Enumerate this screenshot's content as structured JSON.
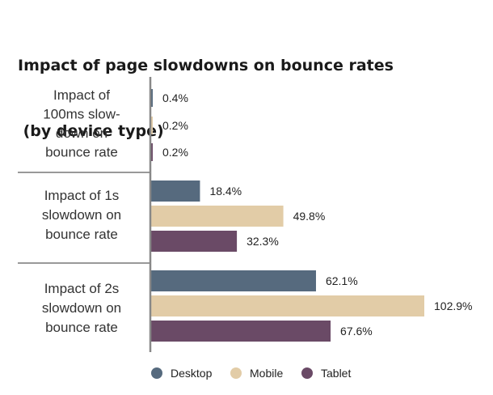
{
  "chart_data": {
    "type": "bar",
    "orientation": "horizontal",
    "title_lines": [
      "Impact of page slowdowns on bounce rates",
      " (by device type)"
    ],
    "categories": [
      [
        "Impact of",
        "100ms slow-",
        "down on",
        "bounce rate"
      ],
      [
        "Impact of 1s",
        "slowdown on",
        "bounce rate"
      ],
      [
        "Impact of 2s",
        "slowdown on",
        "bounce rate"
      ]
    ],
    "series": [
      {
        "name": "Desktop",
        "color": "#566a7e",
        "values": [
          0.4,
          18.4,
          62.1
        ],
        "labels": [
          "0.4%",
          "18.4%",
          "62.1%"
        ]
      },
      {
        "name": "Mobile",
        "color": "#e2cca7",
        "values": [
          0.2,
          49.8,
          102.9
        ],
        "labels": [
          "0.2%",
          "49.8%",
          "102.9%"
        ]
      },
      {
        "name": "Tablet",
        "color": "#6a4a66",
        "values": [
          0.2,
          32.3,
          67.6
        ],
        "labels": [
          "0.2%",
          "32.3%",
          "67.6%"
        ]
      }
    ],
    "xlim": [
      0,
      102.9
    ],
    "legend_position": "bottom",
    "grid": false,
    "colors": {
      "axis": "#888888",
      "separator": "#999999"
    }
  }
}
